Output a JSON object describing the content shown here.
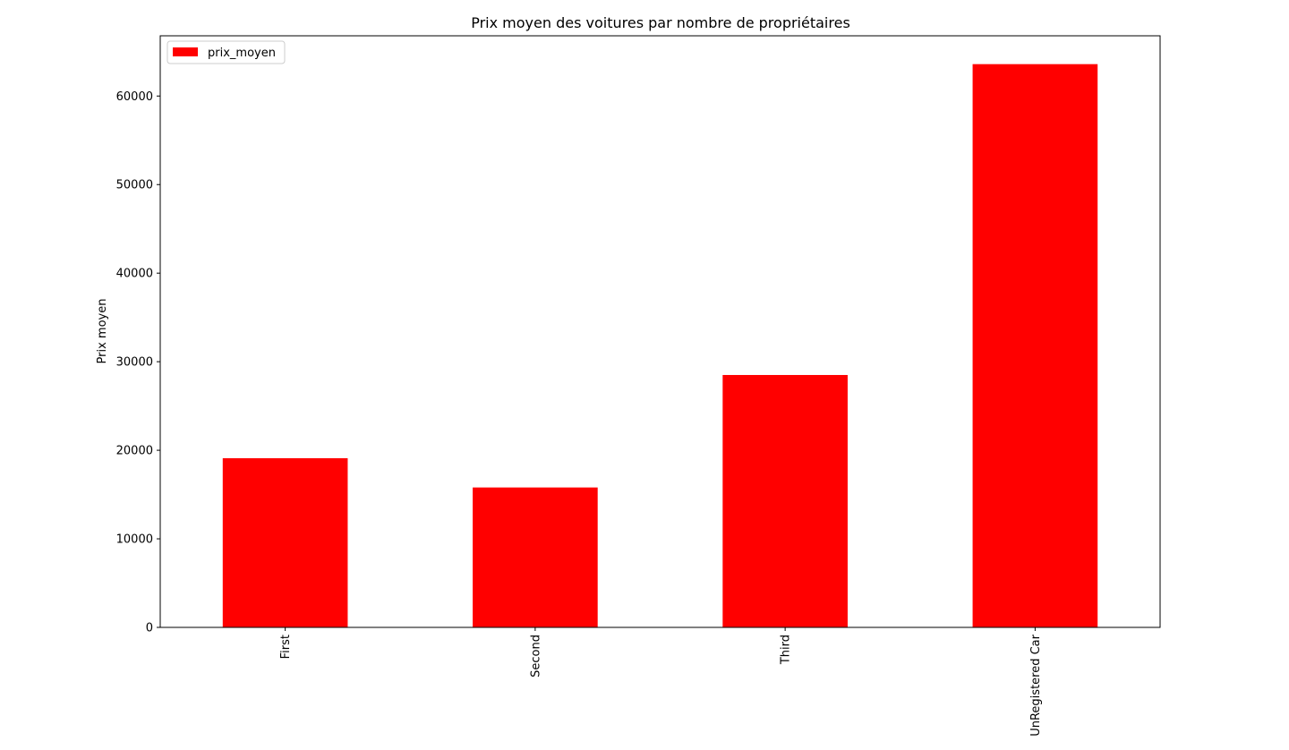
{
  "chart_data": {
    "type": "bar",
    "title": "Prix moyen des voitures par nombre de propriétaires",
    "xlabel": "",
    "ylabel": "Prix moyen",
    "categories": [
      "First",
      "Second",
      "Third",
      "UnRegistered Car"
    ],
    "series": [
      {
        "name": "prix_moyen",
        "values": [
          19100,
          15800,
          28500,
          63600
        ]
      }
    ],
    "y_ticks": [
      0,
      10000,
      20000,
      30000,
      40000,
      50000,
      60000
    ],
    "ylim": [
      0,
      66800
    ],
    "grid": false,
    "legend_position": "top-left",
    "bar_color": "#ff0000",
    "x_tick_rotation": "vertical"
  }
}
